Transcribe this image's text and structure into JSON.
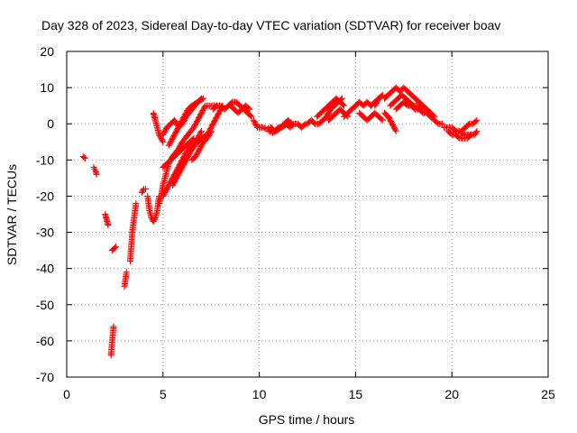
{
  "chart_data": {
    "type": "scatter",
    "title": "Day 328 of 2023, Sidereal Day-to-day VTEC variation (SDTVAR) for receiver boav",
    "xlabel": "GPS time / hours",
    "ylabel": "SDTVAR / TECUs",
    "xlim": [
      0,
      25
    ],
    "ylim": [
      -70,
      20
    ],
    "x_ticks": [
      0,
      5,
      10,
      15,
      20,
      25
    ],
    "y_ticks": [
      -70,
      -60,
      -50,
      -40,
      -30,
      -20,
      -10,
      0,
      10,
      20
    ],
    "x_tick_labels": [
      "0",
      "5",
      "10",
      "15",
      "20",
      "25"
    ],
    "y_tick_labels": [
      "-70",
      "-60",
      "-50",
      "-40",
      "-30",
      "-20",
      "-10",
      "0",
      "10",
      "20"
    ],
    "grid": true,
    "marker": "+",
    "color": "#ff0000",
    "series": [
      {
        "name": "boav",
        "segments": [
          [
            [
              0.85,
              -9
            ],
            [
              0.9,
              -9.3
            ],
            [
              0.95,
              -9.5
            ]
          ],
          [
            [
              1.4,
              -12
            ],
            [
              1.45,
              -12.5
            ],
            [
              1.5,
              -13
            ],
            [
              1.55,
              -14
            ]
          ],
          [
            [
              2.0,
              -25
            ],
            [
              2.05,
              -26
            ],
            [
              2.1,
              -27
            ],
            [
              2.15,
              -28
            ]
          ],
          [
            [
              2.3,
              -64
            ],
            [
              2.33,
              -62
            ],
            [
              2.36,
              -60
            ],
            [
              2.4,
              -58
            ],
            [
              2.43,
              -56
            ]
          ],
          [
            [
              2.35,
              -35
            ],
            [
              2.45,
              -34.5
            ],
            [
              2.55,
              -34
            ]
          ],
          [
            [
              3.0,
              -45
            ],
            [
              3.05,
              -43
            ],
            [
              3.1,
              -41
            ]
          ],
          [
            [
              3.3,
              -38
            ],
            [
              3.32,
              -36
            ],
            [
              3.35,
              -34
            ],
            [
              3.38,
              -32
            ],
            [
              3.4,
              -30
            ],
            [
              3.45,
              -28
            ],
            [
              3.5,
              -26
            ],
            [
              3.55,
              -24
            ],
            [
              3.6,
              -22
            ]
          ],
          [
            [
              3.9,
              -19
            ],
            [
              4.0,
              -18
            ],
            [
              4.1,
              -18
            ]
          ],
          [
            [
              4.2,
              -20
            ],
            [
              4.25,
              -22
            ],
            [
              4.3,
              -24
            ],
            [
              4.4,
              -26
            ],
            [
              4.5,
              -27
            ],
            [
              4.6,
              -26
            ],
            [
              4.7,
              -24
            ],
            [
              4.75,
              -22
            ],
            [
              4.8,
              -20
            ]
          ],
          [
            [
              4.5,
              3
            ],
            [
              4.55,
              2
            ],
            [
              4.6,
              1
            ],
            [
              4.7,
              -1
            ],
            [
              4.8,
              -3
            ],
            [
              4.9,
              -4
            ],
            [
              5.0,
              -5
            ]
          ],
          [
            [
              4.8,
              -22
            ],
            [
              4.9,
              -20
            ],
            [
              5.0,
              -17
            ],
            [
              5.1,
              -15
            ],
            [
              5.2,
              -13
            ],
            [
              5.3,
              -11
            ],
            [
              5.5,
              -9
            ],
            [
              5.8,
              -7
            ],
            [
              6.0,
              -5
            ],
            [
              6.3,
              -3
            ],
            [
              6.6,
              -1
            ],
            [
              6.8,
              1
            ],
            [
              7.0,
              3
            ],
            [
              7.2,
              5
            ],
            [
              7.5,
              5
            ],
            [
              7.8,
              5
            ]
          ],
          [
            [
              5.0,
              -20
            ],
            [
              5.2,
              -18
            ],
            [
              5.4,
              -16
            ],
            [
              5.6,
              -14
            ],
            [
              5.8,
              -12
            ],
            [
              6.0,
              -10
            ],
            [
              6.2,
              -8
            ],
            [
              6.5,
              -6
            ],
            [
              6.8,
              -4
            ],
            [
              7.0,
              -2
            ]
          ],
          [
            [
              5.0,
              -12
            ],
            [
              5.2,
              -11
            ],
            [
              5.4,
              -10
            ],
            [
              5.6,
              -9
            ],
            [
              5.8,
              -8
            ],
            [
              6.0,
              -7
            ],
            [
              6.2,
              -6
            ],
            [
              6.4,
              -5
            ],
            [
              6.6,
              -4
            ]
          ],
          [
            [
              5.0,
              -3
            ],
            [
              5.2,
              -1
            ],
            [
              5.4,
              0
            ],
            [
              5.6,
              1
            ],
            [
              5.8,
              -1
            ],
            [
              6.0,
              0
            ],
            [
              6.2,
              2
            ],
            [
              6.5,
              4
            ],
            [
              6.8,
              6
            ],
            [
              7.1,
              7
            ]
          ],
          [
            [
              5.3,
              -6
            ],
            [
              5.5,
              -4
            ],
            [
              5.7,
              -2
            ],
            [
              5.9,
              0
            ],
            [
              6.1,
              2
            ],
            [
              6.3,
              4
            ],
            [
              6.5,
              5
            ],
            [
              6.8,
              6
            ],
            [
              7.0,
              7
            ]
          ],
          [
            [
              5.5,
              -17
            ],
            [
              5.7,
              -15
            ],
            [
              5.9,
              -13
            ],
            [
              6.1,
              -11
            ],
            [
              6.3,
              -9
            ],
            [
              6.5,
              -7
            ],
            [
              6.8,
              -5
            ],
            [
              7.0,
              -4
            ],
            [
              7.3,
              -3
            ],
            [
              7.5,
              -1
            ],
            [
              7.7,
              1
            ],
            [
              7.9,
              3
            ],
            [
              8.1,
              5
            ]
          ],
          [
            [
              6.5,
              -10
            ],
            [
              6.7,
              -9
            ],
            [
              6.9,
              -7
            ],
            [
              7.1,
              -5
            ],
            [
              7.3,
              -4
            ],
            [
              7.5,
              -2
            ]
          ],
          [
            [
              7.6,
              4
            ],
            [
              7.8,
              5
            ],
            [
              8.0,
              5
            ],
            [
              8.2,
              4
            ],
            [
              8.4,
              5
            ],
            [
              8.6,
              6
            ],
            [
              8.8,
              6
            ],
            [
              9.0,
              5
            ],
            [
              9.2,
              4
            ],
            [
              9.4,
              3
            ],
            [
              9.6,
              2
            ]
          ],
          [
            [
              8.5,
              5
            ],
            [
              8.7,
              4
            ],
            [
              8.9,
              3
            ],
            [
              9.1,
              4
            ],
            [
              9.3,
              5
            ],
            [
              9.5,
              4
            ]
          ],
          [
            [
              9.7,
              1
            ],
            [
              9.8,
              0
            ],
            [
              9.9,
              -1
            ],
            [
              10.0,
              -1
            ]
          ],
          [
            [
              10.0,
              -1
            ],
            [
              10.2,
              -1
            ],
            [
              10.4,
              -1.5
            ],
            [
              10.6,
              -1
            ],
            [
              10.8,
              -2
            ],
            [
              11.0,
              -1
            ],
            [
              11.2,
              -1
            ],
            [
              11.4,
              0
            ],
            [
              11.6,
              -1
            ],
            [
              11.8,
              0
            ],
            [
              12.0,
              0
            ],
            [
              12.2,
              -1
            ],
            [
              12.4,
              0
            ]
          ],
          [
            [
              10.5,
              -2
            ],
            [
              10.7,
              -2.5
            ],
            [
              10.9,
              -2
            ],
            [
              11.1,
              -1
            ],
            [
              11.3,
              0
            ],
            [
              11.5,
              1
            ],
            [
              11.7,
              0
            ]
          ],
          [
            [
              12.5,
              0
            ],
            [
              12.7,
              1
            ],
            [
              12.9,
              0
            ],
            [
              13.1,
              0
            ],
            [
              13.3,
              1
            ],
            [
              13.5,
              2
            ],
            [
              13.7,
              4
            ],
            [
              13.9,
              5
            ],
            [
              14.1,
              6
            ],
            [
              14.3,
              7
            ]
          ],
          [
            [
              13.0,
              2
            ],
            [
              13.2,
              3
            ],
            [
              13.4,
              4
            ],
            [
              13.6,
              5
            ],
            [
              13.8,
              6
            ],
            [
              14.0,
              7
            ],
            [
              14.2,
              6
            ],
            [
              14.4,
              5
            ]
          ],
          [
            [
              13.6,
              1
            ],
            [
              13.8,
              2
            ],
            [
              14.0,
              3
            ],
            [
              14.2,
              4
            ],
            [
              14.4,
              3
            ],
            [
              14.6,
              2
            ]
          ],
          [
            [
              14.4,
              2
            ],
            [
              14.6,
              3
            ],
            [
              14.8,
              4
            ],
            [
              15.0,
              5
            ],
            [
              15.2,
              6
            ],
            [
              15.4,
              5
            ],
            [
              15.6,
              6
            ],
            [
              15.8,
              5
            ],
            [
              16.0,
              6
            ],
            [
              16.2,
              7
            ]
          ],
          [
            [
              15.2,
              3
            ],
            [
              15.4,
              2
            ],
            [
              15.6,
              1
            ],
            [
              15.8,
              2
            ],
            [
              16.0,
              3
            ],
            [
              16.2,
              2
            ],
            [
              16.4,
              1
            ]
          ],
          [
            [
              16.0,
              5
            ],
            [
              16.2,
              7
            ],
            [
              16.4,
              8
            ]
          ],
          [
            [
              16.5,
              3
            ],
            [
              16.7,
              2
            ],
            [
              16.9,
              0
            ],
            [
              17.0,
              -1
            ],
            [
              17.1,
              -2
            ]
          ],
          [
            [
              16.5,
              7
            ],
            [
              16.7,
              8
            ],
            [
              16.9,
              9
            ],
            [
              17.1,
              10
            ],
            [
              17.3,
              9
            ],
            [
              17.5,
              10
            ],
            [
              17.7,
              9
            ],
            [
              17.9,
              8
            ],
            [
              18.1,
              7
            ],
            [
              18.3,
              6
            ],
            [
              18.5,
              5
            ],
            [
              18.7,
              4
            ],
            [
              18.9,
              3
            ],
            [
              19.1,
              2
            ]
          ],
          [
            [
              16.8,
              5
            ],
            [
              17.0,
              6
            ],
            [
              17.2,
              7
            ],
            [
              17.4,
              8
            ],
            [
              17.6,
              7
            ],
            [
              17.8,
              6
            ],
            [
              18.0,
              5
            ],
            [
              18.2,
              5
            ],
            [
              18.4,
              4
            ]
          ],
          [
            [
              17.1,
              4
            ],
            [
              17.3,
              5
            ],
            [
              17.5,
              6
            ],
            [
              17.7,
              5
            ],
            [
              17.9,
              5
            ],
            [
              18.1,
              4
            ],
            [
              18.3,
              4
            ],
            [
              18.5,
              3
            ],
            [
              18.7,
              3
            ],
            [
              18.9,
              2
            ],
            [
              19.1,
              1
            ],
            [
              19.3,
              0
            ],
            [
              19.5,
              0
            ]
          ],
          [
            [
              19.6,
              -1
            ],
            [
              19.8,
              -1
            ],
            [
              20.0,
              -1
            ],
            [
              20.2,
              -2
            ],
            [
              20.4,
              -2
            ],
            [
              20.6,
              -3
            ],
            [
              20.8,
              -3
            ],
            [
              21.0,
              -3
            ],
            [
              21.2,
              -3
            ],
            [
              21.3,
              -2
            ]
          ],
          [
            [
              19.8,
              -2
            ],
            [
              20.0,
              -3
            ],
            [
              20.2,
              -3
            ],
            [
              20.4,
              -4
            ],
            [
              20.6,
              -4
            ],
            [
              20.8,
              -4
            ],
            [
              21.0,
              -3
            ]
          ],
          [
            [
              20.5,
              -2
            ],
            [
              20.7,
              -1
            ],
            [
              20.9,
              0
            ],
            [
              21.1,
              0
            ],
            [
              21.3,
              1
            ]
          ]
        ]
      }
    ]
  }
}
